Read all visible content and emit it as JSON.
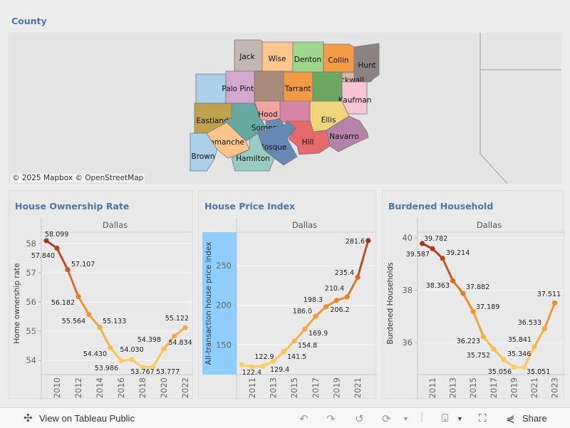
{
  "map": {
    "title": "County",
    "attribution": "© 2025 Mapbox  © OpenStreetMap",
    "county_labels": [
      "Jack",
      "Wise",
      "Denton",
      "Collin",
      "Hunt",
      "Rockwall",
      "Palo Pinto",
      "Tarrant",
      "Kaufman",
      "Eastland",
      "Hood",
      "Somervell",
      "Ellis",
      "Navarro",
      "Comanche",
      "Hill",
      "Bosque",
      "Brown",
      "Hamilton"
    ]
  },
  "charts_meta": {
    "facet_label": "Dallas"
  },
  "chart_data": [
    {
      "type": "line",
      "title": "House Ownership Rate",
      "facet": "Dallas",
      "ylabel": "Home ownership rate",
      "x": [
        2009,
        2010,
        2011,
        2012,
        2013,
        2014,
        2015,
        2016,
        2017,
        2018,
        2019,
        2020,
        2021,
        2022
      ],
      "values": [
        58.099,
        57.84,
        57.107,
        56.182,
        55.564,
        55.133,
        54.43,
        53.986,
        54.03,
        53.767,
        53.777,
        54.398,
        54.834,
        55.122
      ],
      "labels": [
        "58.099",
        "57.840",
        "57.107",
        "56.182",
        "55.564",
        "55.133",
        "54.430",
        "53.986",
        "54.030",
        "53.767",
        "53.777",
        "54.398",
        "54.834",
        "55.122"
      ],
      "yticks": [
        "54",
        "55",
        "56",
        "57",
        "58"
      ],
      "xticks": [
        "2010",
        "2012",
        "2014",
        "2016",
        "2018",
        "2020",
        "2022"
      ],
      "color_scale": [
        "#f8d066",
        "#f28e2b",
        "#a3361b"
      ]
    },
    {
      "type": "line",
      "title": "House Price Index",
      "facet": "Dallas",
      "ylabel": "All-transaction house price index",
      "x": [
        2010,
        2011,
        2012,
        2013,
        2014,
        2015,
        2016,
        2017,
        2018,
        2019,
        2020,
        2021,
        2022
      ],
      "values": [
        125.0,
        122.4,
        122.9,
        129.4,
        141.5,
        154.8,
        169.9,
        186.0,
        198.3,
        206.2,
        210.4,
        235.4,
        281.6
      ],
      "labels": [
        "",
        "122.4",
        "122.9",
        "129.4",
        "141.5",
        "154.8",
        "169.9",
        "186.0",
        "198.3",
        "206.2",
        "210.4",
        "235.4",
        "281.6"
      ],
      "yticks": [
        "150",
        "200",
        "250"
      ],
      "xticks": [
        "2011",
        "2013",
        "2015",
        "2017",
        "2019",
        "2021"
      ],
      "color_scale": [
        "#f8d066",
        "#f28e2b",
        "#a3361b"
      ],
      "ylabel_highlight": "#8fcdfb"
    },
    {
      "type": "line",
      "title": "Burdened Household",
      "facet": "Dallas",
      "ylabel": "Burdened Households",
      "x": [
        2010,
        2011,
        2012,
        2013,
        2014,
        2015,
        2016,
        2017,
        2018,
        2019,
        2020,
        2021,
        2022,
        2023
      ],
      "values": [
        39.782,
        39.587,
        39.214,
        38.363,
        37.882,
        37.189,
        36.223,
        35.752,
        35.346,
        35.056,
        35.051,
        35.841,
        36.533,
        37.511
      ],
      "labels": [
        "39.782",
        "39.587",
        "39.214",
        "38.363",
        "37.882",
        "37.189",
        "36.223",
        "35.752",
        "35.346",
        "35.056",
        "35.051",
        "35.841",
        "36.533",
        "37.511"
      ],
      "yticks": [
        "36",
        "38",
        "40"
      ],
      "xticks": [
        "2011",
        "2013",
        "2015",
        "2017",
        "2019",
        "2021",
        "2023"
      ],
      "color_scale": [
        "#f8d066",
        "#f28e2b",
        "#a3361b"
      ]
    }
  ],
  "toolbar": {
    "view_on": "View on Tableau Public",
    "share": "Share"
  }
}
